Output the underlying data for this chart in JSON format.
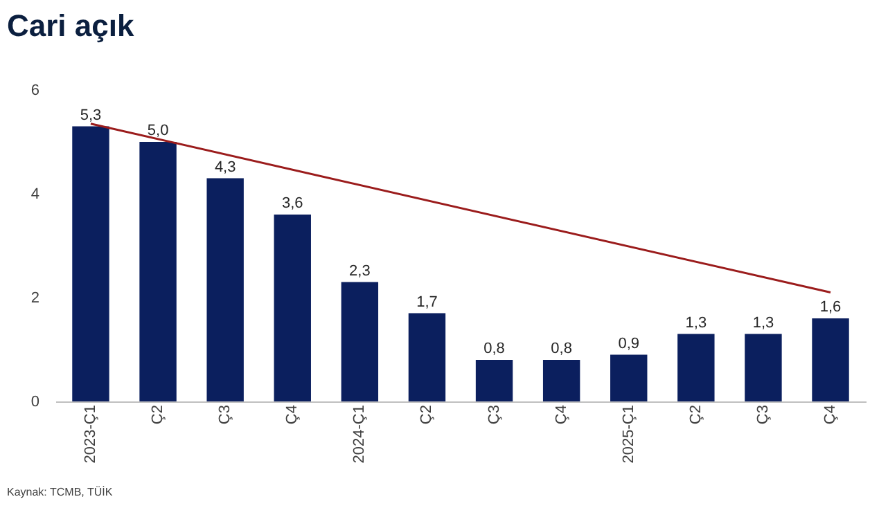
{
  "chart_data": {
    "type": "bar",
    "title": "Cari açık",
    "categories": [
      "2023-Ç1",
      "Ç2",
      "Ç3",
      "Ç4",
      "2024-Ç1",
      "Ç2",
      "Ç3",
      "Ç4",
      "2025-Ç1",
      "Ç2",
      "Ç3",
      "Ç4"
    ],
    "series": [
      {
        "color": "#0b1f5e",
        "values": [
          5.3,
          5.0,
          4.3,
          3.6,
          2.3,
          1.7,
          0.8,
          0.8,
          0.9,
          1.3,
          1.3,
          1.6
        ],
        "value_labels": [
          "5,3",
          "5,0",
          "4,3",
          "3,6",
          "2,3",
          "1,7",
          "0,8",
          "0,8",
          "0,9",
          "1,3",
          "1,3",
          "1,6"
        ]
      },
      {
        "type": "line",
        "color": "#9b1c1c",
        "marker": "none",
        "values": [
          5.35,
          null,
          null,
          null,
          null,
          null,
          null,
          null,
          null,
          null,
          null,
          2.1
        ]
      }
    ],
    "ylim": [
      0,
      6
    ],
    "yticks": [
      0,
      2,
      4,
      6
    ],
    "grid": false,
    "annotations": [
      "Kaynak: TCMB, TÜİK"
    ]
  }
}
